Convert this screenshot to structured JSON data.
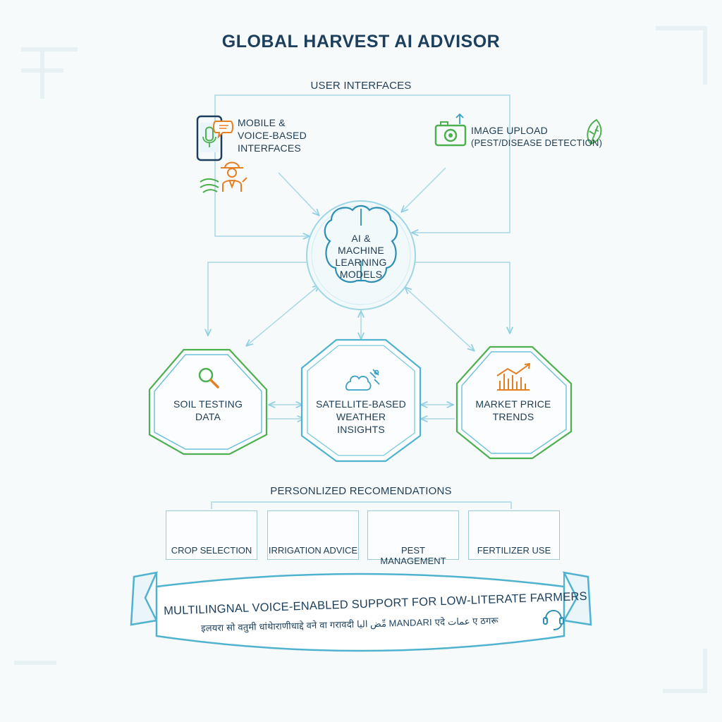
{
  "title": "GLOBAL HARVEST AI ADVISOR",
  "user_interfaces": {
    "label": "USER INTERFACES",
    "mobile_lines": [
      "MOBILE &",
      "VOICE-BASED",
      "INTERFACES"
    ],
    "image_lines": [
      "IMAGE UPLOAD",
      "(PEST/DISEASE DETECTION)"
    ]
  },
  "ai_core": {
    "lines": [
      "AI &",
      "MACHINE",
      "LEARNING",
      "MODELS"
    ]
  },
  "data_sources": [
    {
      "lines": [
        "SOIL TESTING",
        "DATA"
      ]
    },
    {
      "lines": [
        "SATELLITE-BASED",
        "WEATHER",
        "INSIGHTS"
      ]
    },
    {
      "lines": [
        "MARKET PRICE",
        "TRENDS"
      ]
    }
  ],
  "recommendations": {
    "label": "PERSONLIZED RECOMENDATIONS",
    "items": [
      {
        "label": "CROP SELECTION",
        "icon": "sprout-icon"
      },
      {
        "label": "IRRIGATION ADVICE",
        "icon": "water-drop-icon"
      },
      {
        "label": "PEST MANAGEMENT",
        "icon": "bug-icon"
      },
      {
        "label": "FERTILIZER USE",
        "icon": "fertilizer-bag-icon"
      }
    ]
  },
  "banner": {
    "headline": "MULTILINGNAL VOICE-ENABLED SUPPORT FOR LOW-LITERATE FARMERS",
    "languages_line": "इलयरा सो वतुमी धांथेाराणीधाद्दे वने वा गरावदी مِّض اليا MANDARI एदे عمات ए ठगरू"
  },
  "colors": {
    "teal": "#4fb3cf",
    "green": "#4caf50",
    "orange": "#e67e22",
    "navy": "#1b3f5c",
    "line": "#9fd3e3"
  }
}
